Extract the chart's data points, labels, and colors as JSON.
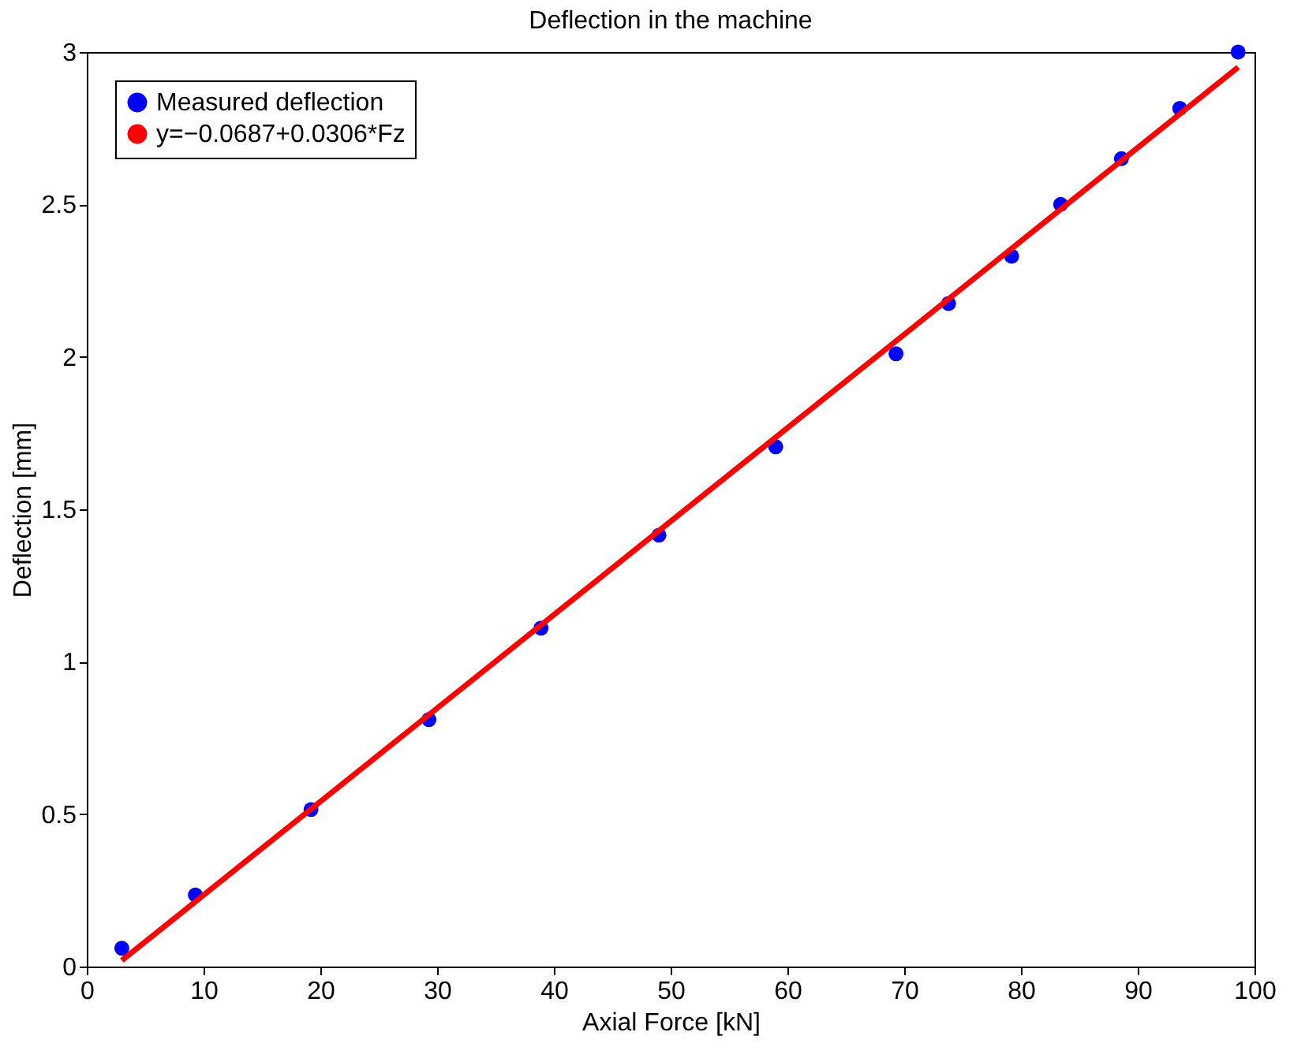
{
  "chart_data": {
    "type": "scatter",
    "title": "Deflection in the machine",
    "xlabel": "Axial Force [kN]",
    "ylabel": "Deflection [mm]",
    "xlim": [
      0,
      100
    ],
    "xticks": [
      0,
      10,
      20,
      30,
      40,
      50,
      60,
      70,
      80,
      90,
      100
    ],
    "ylim": [
      0,
      3
    ],
    "yticks": [
      0,
      0.5,
      1,
      1.5,
      2,
      2.5,
      3
    ],
    "grid": false,
    "legend": "top left",
    "series": [
      {
        "name": "Measured deflection",
        "marker": "circle",
        "color": "#0000ff",
        "x": [
          3,
          9.3,
          19.2,
          29.3,
          38.9,
          49,
          59,
          69.3,
          73.8,
          79.2,
          83.4,
          88.6,
          93.6,
          98.6
        ],
        "values": [
          0.06,
          0.235,
          0.515,
          0.81,
          1.11,
          1.415,
          1.705,
          2.01,
          2.175,
          2.33,
          2.5,
          2.65,
          2.815,
          3.0
        ]
      },
      {
        "name": "y=−0.0687+0.0306*Fz",
        "type": "line",
        "line_style": "solid",
        "color": "#ff0000",
        "x": [
          3,
          98.6
        ],
        "values": [
          0.02,
          2.95
        ]
      }
    ]
  }
}
